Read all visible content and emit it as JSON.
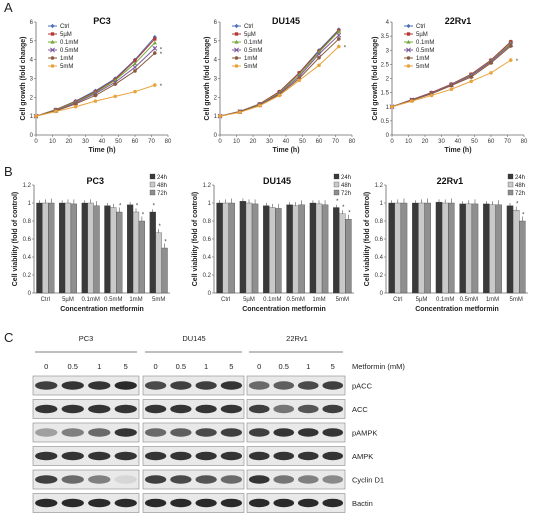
{
  "figure": {
    "panel_letters": [
      "A",
      "B",
      "C"
    ]
  },
  "chart_data": [
    {
      "type": "line",
      "panel": "A",
      "title": "PC3",
      "xlabel": "Time (h)",
      "ylabel": "Cell growth (fold change)",
      "xlim": [
        0,
        80
      ],
      "ylim": [
        0,
        6
      ],
      "xticks": [
        0,
        10,
        20,
        30,
        40,
        50,
        60,
        70,
        80
      ],
      "yticks": [
        0,
        1,
        2,
        3,
        4,
        5,
        6
      ],
      "x": [
        0,
        12,
        24,
        36,
        48,
        60,
        72
      ],
      "series": [
        {
          "name": "Ctrl",
          "color": "#4a6fb5",
          "marker": "diamond",
          "values": [
            1,
            1.35,
            1.8,
            2.35,
            3.0,
            4.0,
            5.2
          ]
        },
        {
          "name": "5µM",
          "color": "#b23a32",
          "marker": "square",
          "values": [
            1,
            1.35,
            1.78,
            2.3,
            2.95,
            3.95,
            5.1
          ]
        },
        {
          "name": "0.1mM",
          "color": "#74a83c",
          "marker": "triangle",
          "values": [
            1,
            1.33,
            1.75,
            2.25,
            2.9,
            3.8,
            4.9
          ]
        },
        {
          "name": "0.5mM",
          "color": "#7d5a9e",
          "marker": "x",
          "values": [
            1,
            1.3,
            1.7,
            2.2,
            2.8,
            3.6,
            4.6
          ]
        },
        {
          "name": "1mM",
          "color": "#8b5a3c",
          "marker": "circle",
          "values": [
            1,
            1.28,
            1.65,
            2.1,
            2.7,
            3.4,
            4.35
          ]
        },
        {
          "name": "5mM",
          "color": "#e8a33c",
          "marker": "circle",
          "values": [
            1,
            1.25,
            1.5,
            1.8,
            2.05,
            2.3,
            2.65
          ]
        }
      ],
      "significance_marks": [
        "*",
        "*",
        "*"
      ]
    },
    {
      "type": "line",
      "panel": "A",
      "title": "DU145",
      "xlabel": "Time (h)",
      "ylabel": "Cell growth (fold change)",
      "xlim": [
        0,
        80
      ],
      "ylim": [
        0,
        6
      ],
      "xticks": [
        0,
        10,
        20,
        30,
        40,
        50,
        60,
        70,
        80
      ],
      "yticks": [
        0,
        1,
        2,
        3,
        4,
        5,
        6
      ],
      "x": [
        0,
        12,
        24,
        36,
        48,
        60,
        72
      ],
      "series": [
        {
          "name": "Ctrl",
          "color": "#4a6fb5",
          "marker": "diamond",
          "values": [
            1,
            1.25,
            1.65,
            2.3,
            3.3,
            4.5,
            5.6
          ]
        },
        {
          "name": "5µM",
          "color": "#b23a32",
          "marker": "square",
          "values": [
            1,
            1.25,
            1.65,
            2.3,
            3.3,
            4.45,
            5.55
          ]
        },
        {
          "name": "0.1mM",
          "color": "#74a83c",
          "marker": "triangle",
          "values": [
            1,
            1.25,
            1.63,
            2.25,
            3.2,
            4.4,
            5.5
          ]
        },
        {
          "name": "0.5mM",
          "color": "#7d5a9e",
          "marker": "x",
          "values": [
            1,
            1.24,
            1.6,
            2.2,
            3.1,
            4.3,
            5.3
          ]
        },
        {
          "name": "1mM",
          "color": "#8b5a3c",
          "marker": "circle",
          "values": [
            1,
            1.23,
            1.58,
            2.15,
            3.0,
            4.1,
            5.1
          ]
        },
        {
          "name": "5mM",
          "color": "#e8a33c",
          "marker": "circle",
          "values": [
            1,
            1.2,
            1.55,
            2.1,
            2.9,
            3.7,
            4.7
          ]
        }
      ],
      "significance_marks": [
        "*"
      ]
    },
    {
      "type": "line",
      "panel": "A",
      "title": "22Rv1",
      "xlabel": "Time (h)",
      "ylabel": "Cell growth (fold change)",
      "xlim": [
        0,
        80
      ],
      "ylim": [
        0,
        4
      ],
      "xticks": [
        0,
        10,
        20,
        30,
        40,
        50,
        60,
        70,
        80
      ],
      "yticks": [
        0,
        0.5,
        1,
        1.5,
        2,
        2.5,
        3,
        3.5,
        4
      ],
      "x": [
        0,
        12,
        24,
        36,
        48,
        60,
        72
      ],
      "series": [
        {
          "name": "Ctrl",
          "color": "#4a6fb5",
          "marker": "diamond",
          "values": [
            1,
            1.25,
            1.5,
            1.8,
            2.15,
            2.65,
            3.3
          ]
        },
        {
          "name": "5µM",
          "color": "#b23a32",
          "marker": "square",
          "values": [
            1,
            1.25,
            1.5,
            1.8,
            2.15,
            2.65,
            3.3
          ]
        },
        {
          "name": "0.1mM",
          "color": "#74a83c",
          "marker": "triangle",
          "values": [
            1,
            1.24,
            1.48,
            1.78,
            2.12,
            2.62,
            3.25
          ]
        },
        {
          "name": "0.5mM",
          "color": "#7d5a9e",
          "marker": "x",
          "values": [
            1,
            1.24,
            1.48,
            1.77,
            2.1,
            2.6,
            3.2
          ]
        },
        {
          "name": "1mM",
          "color": "#8b5a3c",
          "marker": "circle",
          "values": [
            1,
            1.23,
            1.46,
            1.75,
            2.05,
            2.55,
            3.15
          ]
        },
        {
          "name": "5mM",
          "color": "#e8a33c",
          "marker": "circle",
          "values": [
            1,
            1.2,
            1.4,
            1.62,
            1.9,
            2.2,
            2.65
          ]
        }
      ],
      "significance_marks": [
        "*"
      ]
    },
    {
      "type": "bar",
      "panel": "B",
      "title": "PC3",
      "xlabel": "Concentration metformin",
      "ylabel": "Cell viability (fold of control)",
      "ylim": [
        0,
        1.2
      ],
      "yticks": [
        0,
        0.2,
        0.4,
        0.6,
        0.8,
        1,
        1.2
      ],
      "categories": [
        "Ctrl",
        "5µM",
        "0.1mM",
        "0.5mM",
        "1mM",
        "5mM"
      ],
      "series": [
        {
          "name": "24h",
          "color": "#3a3a3a",
          "values": [
            1,
            1.0,
            1.0,
            0.97,
            0.98,
            0.9
          ]
        },
        {
          "name": "48h",
          "color": "#c9c9c9",
          "values": [
            1,
            1.0,
            1.0,
            0.95,
            0.9,
            0.67
          ]
        },
        {
          "name": "72h",
          "color": "#8f8f8f",
          "values": [
            1,
            0.99,
            0.97,
            0.9,
            0.8,
            0.5
          ]
        }
      ],
      "significance_marks": [
        "*",
        "*",
        "*",
        "*",
        "*",
        "*"
      ]
    },
    {
      "type": "bar",
      "panel": "B",
      "title": "DU145",
      "xlabel": "Concentration metformin",
      "ylabel": "Cell viability (fold of control)",
      "ylim": [
        0,
        1.2
      ],
      "yticks": [
        0,
        0.2,
        0.4,
        0.6,
        0.8,
        1,
        1.2
      ],
      "categories": [
        "Ctrl",
        "5µM",
        "0.1mM",
        "0.5mM",
        "1mM",
        "5mM"
      ],
      "series": [
        {
          "name": "24h",
          "color": "#3a3a3a",
          "values": [
            1,
            1.02,
            0.97,
            0.98,
            1.0,
            0.95
          ]
        },
        {
          "name": "48h",
          "color": "#c9c9c9",
          "values": [
            1,
            1.0,
            0.95,
            0.97,
            0.99,
            0.88
          ]
        },
        {
          "name": "72h",
          "color": "#8f8f8f",
          "values": [
            1,
            0.99,
            0.94,
            0.98,
            0.98,
            0.82
          ]
        }
      ],
      "significance_marks": [
        "*",
        "*",
        "*"
      ]
    },
    {
      "type": "bar",
      "panel": "B",
      "title": "22Rv1",
      "xlabel": "Concentration metformin",
      "ylabel": "Cell viability (fold of control)",
      "ylim": [
        0,
        1.2
      ],
      "yticks": [
        0,
        0.2,
        0.4,
        0.6,
        0.8,
        1,
        1.2
      ],
      "categories": [
        "Ctrl",
        "5µM",
        "0.1mM",
        "0.5mM",
        "1mM",
        "5mM"
      ],
      "series": [
        {
          "name": "24h",
          "color": "#3a3a3a",
          "values": [
            1,
            1.0,
            1.01,
            0.99,
            0.99,
            0.97
          ]
        },
        {
          "name": "48h",
          "color": "#c9c9c9",
          "values": [
            1,
            1.0,
            1.0,
            0.99,
            0.98,
            0.92
          ]
        },
        {
          "name": "72h",
          "color": "#8f8f8f",
          "values": [
            1,
            1.0,
            1.0,
            0.99,
            0.98,
            0.8
          ]
        }
      ],
      "significance_marks": [
        "*",
        "*"
      ]
    }
  ],
  "western_blot": {
    "cell_lines": [
      "PC3",
      "DU145",
      "22Rv1"
    ],
    "lane_labels": [
      "0",
      "0.5",
      "1",
      "5"
    ],
    "treatment_label": "Metformin (mM)",
    "proteins": [
      "pACC",
      "ACC",
      "pAMPK",
      "AMPK",
      "Cyclin D1",
      "Bactin"
    ],
    "intensities": {
      "PC3": [
        [
          0.8,
          0.85,
          0.85,
          0.9
        ],
        [
          0.85,
          0.85,
          0.85,
          0.85
        ],
        [
          0.35,
          0.5,
          0.6,
          0.85
        ],
        [
          0.85,
          0.85,
          0.85,
          0.85
        ],
        [
          0.8,
          0.6,
          0.5,
          0.1
        ],
        [
          0.9,
          0.9,
          0.9,
          0.9
        ]
      ],
      "DU145": [
        [
          0.75,
          0.8,
          0.8,
          0.85
        ],
        [
          0.85,
          0.85,
          0.85,
          0.85
        ],
        [
          0.6,
          0.65,
          0.75,
          0.8
        ],
        [
          0.85,
          0.85,
          0.85,
          0.85
        ],
        [
          0.8,
          0.75,
          0.7,
          0.6
        ],
        [
          0.9,
          0.9,
          0.9,
          0.9
        ]
      ],
      "22Rv1": [
        [
          0.6,
          0.65,
          0.75,
          0.8
        ],
        [
          0.8,
          0.55,
          0.7,
          0.8
        ],
        [
          0.8,
          0.85,
          0.85,
          0.85
        ],
        [
          0.85,
          0.85,
          0.85,
          0.85
        ],
        [
          0.85,
          0.55,
          0.5,
          0.45
        ],
        [
          0.9,
          0.9,
          0.9,
          0.9
        ]
      ]
    }
  }
}
